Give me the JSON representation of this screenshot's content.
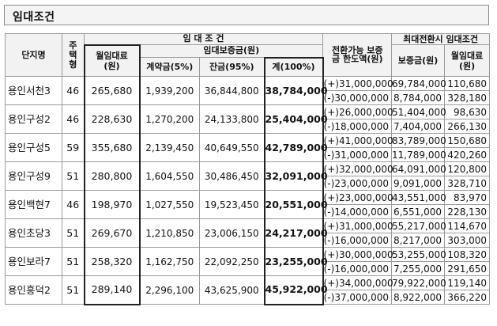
{
  "title": "임대조건",
  "header": {
    "complex": "단지명",
    "type": "주택형",
    "lease_terms": "임 대 조 건",
    "monthly_rent": "월임대료(원)",
    "deposit": "임대보증금(원)",
    "contract": "계약금(5%)",
    "balance": "잔금(95%)",
    "total": "계(100%)",
    "convertible": "전환가능 보증금 한도액(원)",
    "max_conversion": "최대전환시  임대조건",
    "max_deposit": "보증금(원)",
    "max_rent": "월임대료(원)"
  },
  "rows": [
    {
      "name": "용인서천3",
      "type": "46",
      "rent": "265,680",
      "contract": "1,939,200",
      "balance": "36,844,800",
      "total": "38,784,000",
      "conv_plus": "(+)31,000,000",
      "conv_minus": "(-)30,000,000",
      "dep_plus": "69,784,000",
      "dep_minus": "8,784,000",
      "rent_plus": "110,680",
      "rent_minus": "328,180"
    },
    {
      "name": "용인구성2",
      "type": "46",
      "rent": "228,630",
      "contract": "1,270,200",
      "balance": "24,133,800",
      "total": "25,404,000",
      "conv_plus": "(+)26,000,000",
      "conv_minus": "(-)18,000,000",
      "dep_plus": "51,404,000",
      "dep_minus": "7,404,000",
      "rent_plus": "98,630",
      "rent_minus": "266,130"
    },
    {
      "name": "용인구성5",
      "type": "59",
      "rent": "355,680",
      "contract": "2,139,450",
      "balance": "40,649,550",
      "total": "42,789,000",
      "conv_plus": "(+)41,000,000",
      "conv_minus": "(-)31,000,000",
      "dep_plus": "83,789,000",
      "dep_minus": "11,789,000",
      "rent_plus": "150,680",
      "rent_minus": "420,260"
    },
    {
      "name": "용인구성9",
      "type": "51",
      "rent": "280,800",
      "contract": "1,604,550",
      "balance": "30,486,450",
      "total": "32,091,000",
      "conv_plus": "(+)32,000,000",
      "conv_minus": "(-)23,000,000",
      "dep_plus": "64,091,000",
      "dep_minus": "9,091,000",
      "rent_plus": "120,800",
      "rent_minus": "328,710"
    },
    {
      "name": "용인백현7",
      "type": "46",
      "rent": "198,970",
      "contract": "1,027,550",
      "balance": "19,523,450",
      "total": "20,551,000",
      "conv_plus": "(+)23,000,000",
      "conv_minus": "(-)14,000,000",
      "dep_plus": "43,551,000",
      "dep_minus": "6,551,000",
      "rent_plus": "83,970",
      "rent_minus": "228,130"
    },
    {
      "name": "용인초당3",
      "type": "51",
      "rent": "269,670",
      "contract": "1,210,850",
      "balance": "23,006,150",
      "total": "24,217,000",
      "conv_plus": "(+)31,000,000",
      "conv_minus": "(-)16,000,000",
      "dep_plus": "55,217,000",
      "dep_minus": "8,217,000",
      "rent_plus": "114,670",
      "rent_minus": "303,000"
    },
    {
      "name": "용인보라7",
      "type": "51",
      "rent": "258,320",
      "contract": "1,162,750",
      "balance": "22,092,250",
      "total": "23,255,000",
      "conv_plus": "(+)30,000,000",
      "conv_minus": "(-)16,000,000",
      "dep_plus": "53,255,000",
      "dep_minus": "7,255,000",
      "rent_plus": "108,320",
      "rent_minus": "291,650"
    },
    {
      "name": "용인흥덕2",
      "type": "51",
      "rent": "289,140",
      "contract": "2,296,100",
      "balance": "43,625,900",
      "total": "45,922,000",
      "conv_plus": "(+)34,000,000",
      "conv_minus": "(-)37,000,000",
      "dep_plus": "79,922,000",
      "dep_minus": "8,922,000",
      "rent_plus": "119,140",
      "rent_minus": "366,220"
    }
  ]
}
